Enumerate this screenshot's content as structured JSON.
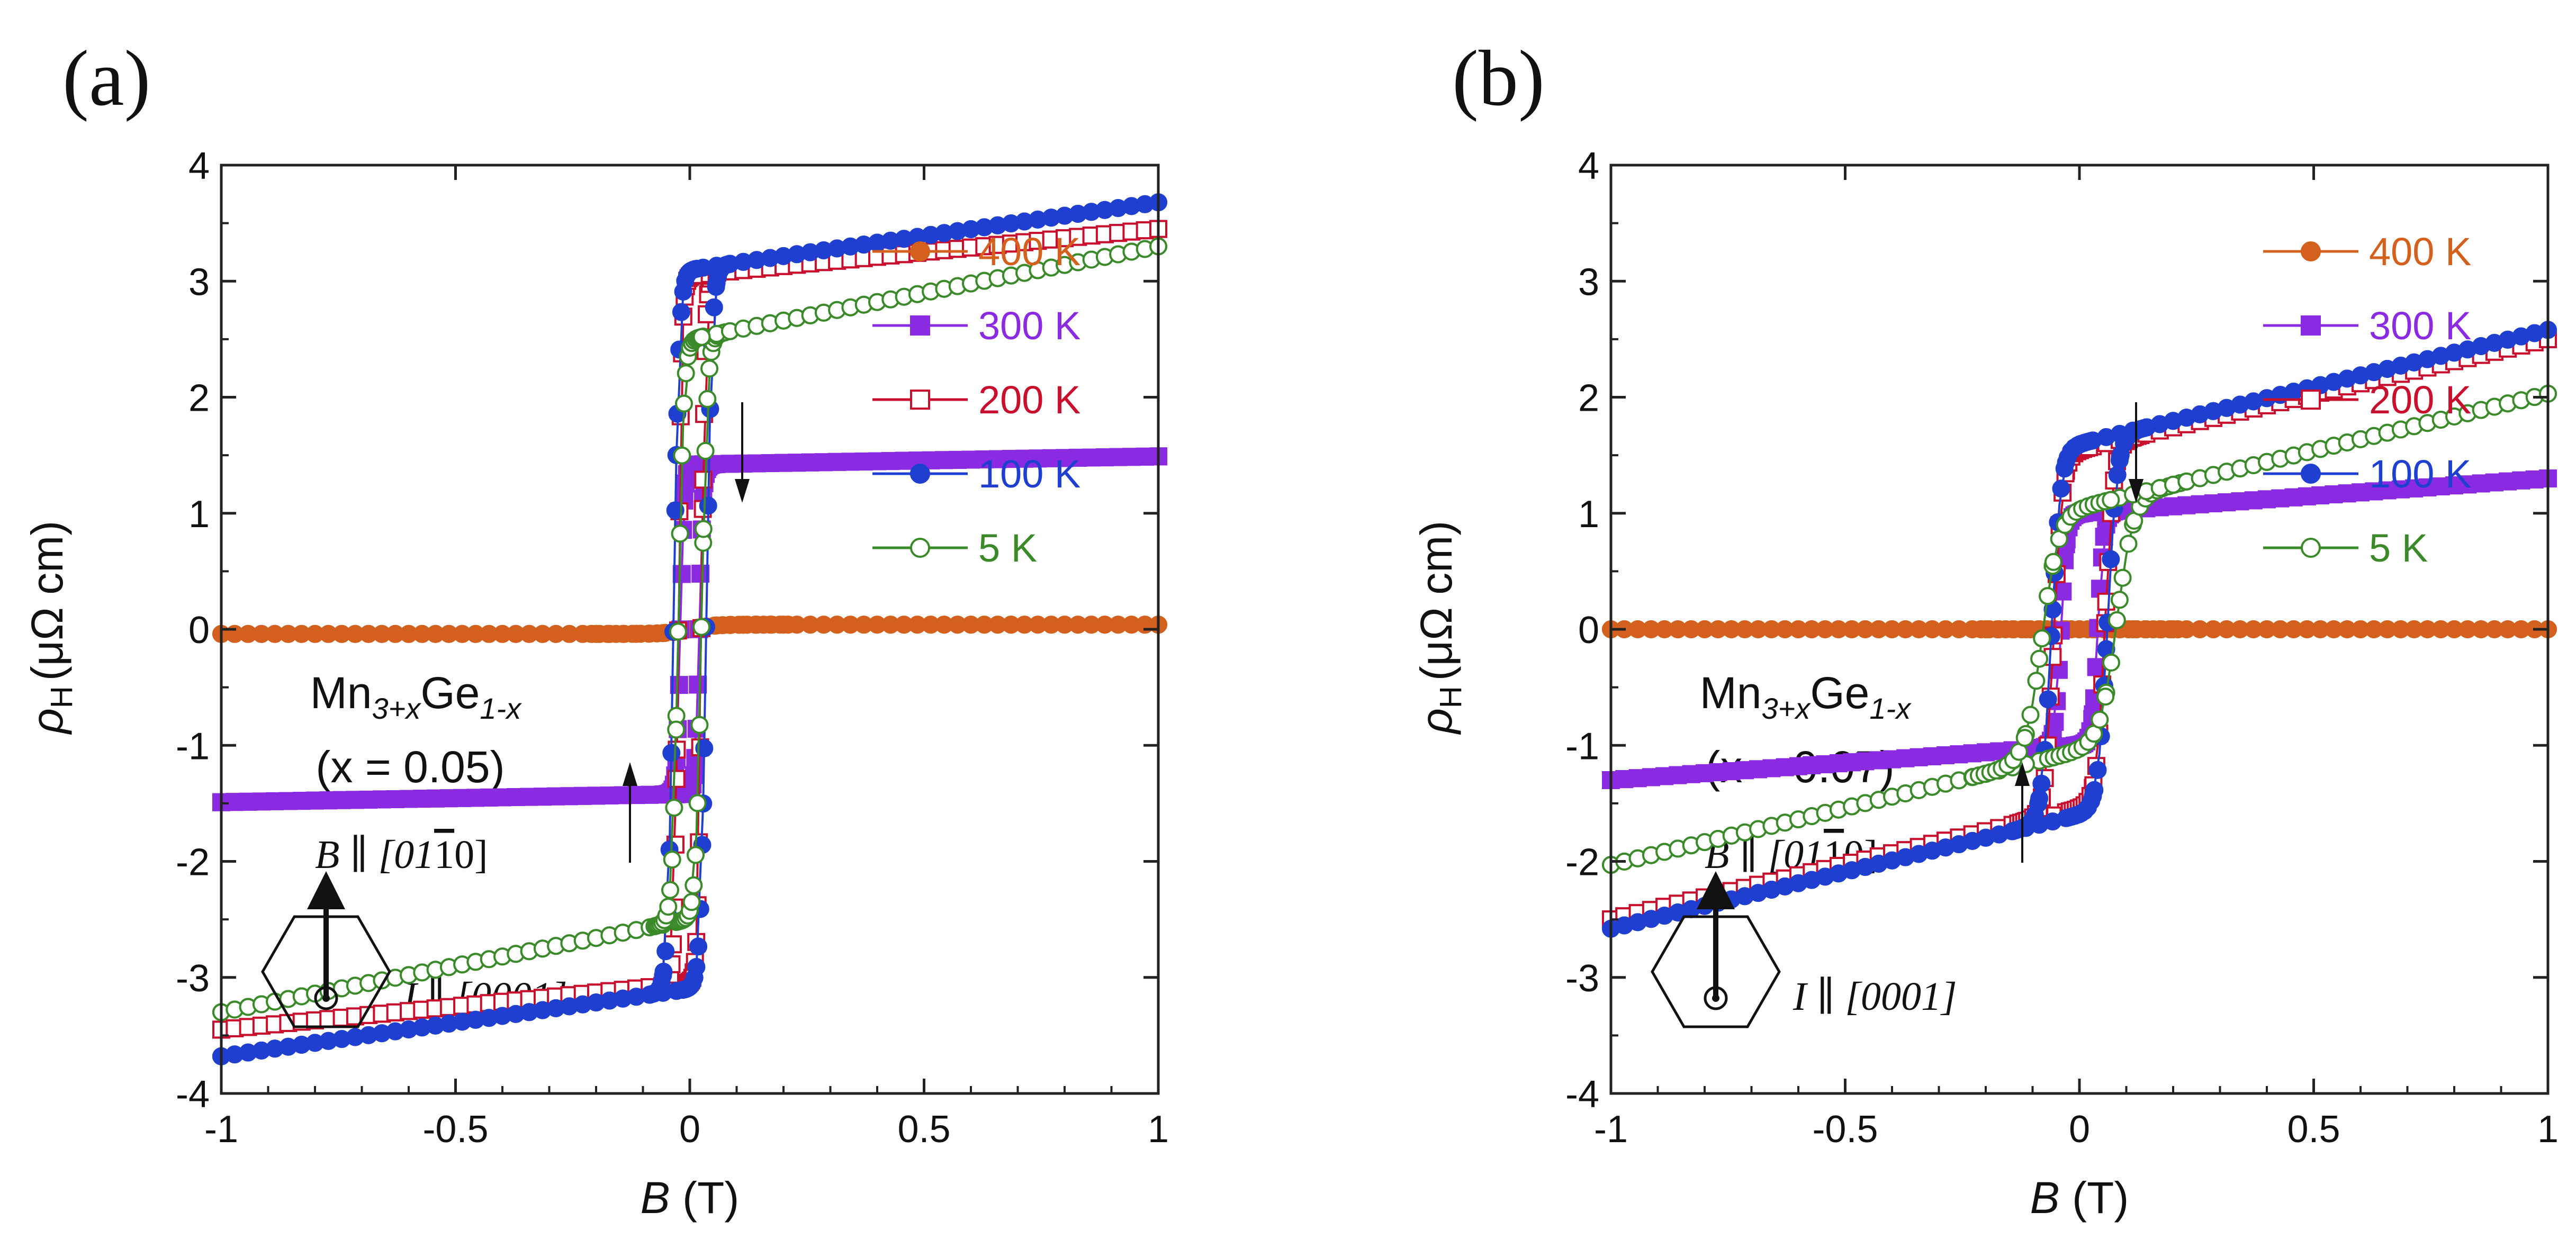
{
  "chart_data": [
    {
      "type": "line",
      "panel_label": "(a)",
      "xlabel_symbol": "B",
      "xlabel_unit": "(T)",
      "ylabel_symbol": "ρ",
      "ylabel_sub": "H",
      "ylabel_unit": "(μΩ cm)",
      "xlim": [
        -1,
        1
      ],
      "ylim": [
        -4,
        4
      ],
      "xticks": [
        -1,
        -0.5,
        0,
        0.5,
        1
      ],
      "xtick_labels": [
        "-1",
        "-0.5",
        "0",
        "0.5",
        "1"
      ],
      "yticks": [
        -4,
        -3,
        -2,
        -1,
        0,
        1,
        2,
        3,
        4
      ],
      "ytick_labels": [
        "-4",
        "-3",
        "-2",
        "-1",
        "0",
        "1",
        "2",
        "3",
        "4"
      ],
      "legend_position": "top-right",
      "compound_main": "Mn",
      "compound_sub1": "3+x",
      "compound_mid": "Ge",
      "compound_sub2": "1-x",
      "composition_label": "(x = 0.05)",
      "field_label": "B ∥ [01",
      "field_label_bar": "1",
      "field_label_end": "0]",
      "current_label": "I ∥ [0001]",
      "series": [
        {
          "name": "400 K",
          "color": "#d4601e",
          "marker": "filled-circle",
          "Ms": 0.04,
          "Bc": 0.0,
          "w": 0.05,
          "k": 0.0
        },
        {
          "name": "300 K",
          "color": "#8a2be2",
          "marker": "filled-square",
          "Ms": 1.42,
          "Bc": 0.02,
          "w": 0.008,
          "k": 0.07
        },
        {
          "name": "200 K",
          "color": "#c8102e",
          "marker": "open-square",
          "Ms": 3.05,
          "Bc": 0.025,
          "w": 0.008,
          "k": 0.4
        },
        {
          "name": "100 K",
          "color": "#1f3fd0",
          "marker": "filled-circle",
          "Ms": 3.1,
          "Bc": 0.035,
          "w": 0.012,
          "k": 0.58
        },
        {
          "name": "5 K",
          "color": "#3a8a2a",
          "marker": "open-circle",
          "Ms": 2.5,
          "Bc": 0.025,
          "w": 0.012,
          "k": 0.8
        }
      ]
    },
    {
      "type": "line",
      "panel_label": "(b)",
      "xlabel_symbol": "B",
      "xlabel_unit": "(T)",
      "ylabel_symbol": "ρ",
      "ylabel_sub": "H",
      "ylabel_unit": "(μΩ cm)",
      "xlim": [
        -1,
        1
      ],
      "ylim": [
        -4,
        4
      ],
      "xticks": [
        -1,
        -0.5,
        0,
        0.5,
        1
      ],
      "xtick_labels": [
        "-1",
        "-0.5",
        "0",
        "0.5",
        "1"
      ],
      "yticks": [
        -4,
        -3,
        -2,
        -1,
        0,
        1,
        2,
        3,
        4
      ],
      "ytick_labels": [
        "-4",
        "-3",
        "-2",
        "-1",
        "0",
        "1",
        "2",
        "3",
        "4"
      ],
      "legend_position": "top-right",
      "compound_main": "Mn",
      "compound_sub1": "3+x",
      "compound_mid": "Ge",
      "compound_sub2": "1-x",
      "composition_label": "(x = 0.07)",
      "field_label": "B ∥ [01",
      "field_label_bar": "1",
      "field_label_end": "0]",
      "current_label": "I ∥ [0001]",
      "series": [
        {
          "name": "400 K",
          "color": "#d4601e",
          "marker": "filled-circle",
          "Ms": 0.0,
          "Bc": 0.0,
          "w": 0.05,
          "k": 0.0
        },
        {
          "name": "300 K",
          "color": "#8a2be2",
          "marker": "filled-square",
          "Ms": 1.0,
          "Bc": 0.04,
          "w": 0.012,
          "k": 0.3
        },
        {
          "name": "200 K",
          "color": "#c8102e",
          "marker": "open-square",
          "Ms": 1.55,
          "Bc": 0.055,
          "w": 0.018,
          "k": 0.95
        },
        {
          "name": "100 K",
          "color": "#1f3fd0",
          "marker": "filled-circle",
          "Ms": 1.6,
          "Bc": 0.06,
          "w": 0.02,
          "k": 0.98
        },
        {
          "name": "5 K",
          "color": "#3a8a2a",
          "marker": "open-circle",
          "Ms": 1.05,
          "Bc": 0.08,
          "w": 0.035,
          "k": 0.98
        }
      ]
    }
  ]
}
